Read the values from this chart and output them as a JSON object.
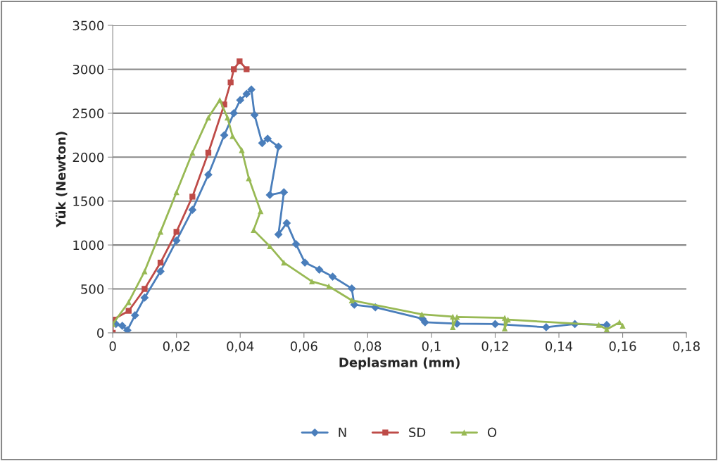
{
  "chart_data": {
    "type": "line",
    "xlabel": "Deplasman (mm)",
    "ylabel": "Yük (Newton)",
    "xlim": [
      0,
      0.18
    ],
    "ylim": [
      0,
      3500
    ],
    "xticks": [
      0,
      {
        "value": 0.02,
        "label": "0,02"
      },
      {
        "value": 0.04,
        "label": "0,04"
      },
      {
        "value": 0.06,
        "label": "0,06"
      },
      {
        "value": 0.08,
        "label": "0,08"
      },
      {
        "value": 0.1,
        "label": "0,1"
      },
      {
        "value": 0.12,
        "label": "0,12"
      },
      {
        "value": 0.14,
        "label": "0,14"
      },
      {
        "value": 0.16,
        "label": "0,16"
      },
      {
        "value": 0.18,
        "label": "0,18"
      }
    ],
    "yticks": [
      0,
      500,
      1000,
      1500,
      2000,
      2500,
      3000,
      3500
    ],
    "grid": "y",
    "legend": "bottom",
    "line_style": "solid",
    "series": [
      {
        "name": "N",
        "color": "#4a7ebb",
        "marker": "diamond",
        "x": [
          0.001,
          0.003,
          0.0046,
          0.007,
          0.01,
          0.015,
          0.02,
          0.025,
          0.03,
          0.035,
          0.038,
          0.04,
          0.042,
          0.0435,
          0.0445,
          0.0469,
          0.0486,
          0.052,
          0.0493,
          0.0537,
          0.052,
          0.0546,
          0.0575,
          0.0603,
          0.0648,
          0.069,
          0.075,
          0.0758,
          0.0824,
          0.0972,
          0.098,
          0.108,
          0.12,
          0.136,
          0.145,
          0.155
        ],
        "values": [
          100,
          80,
          30,
          200,
          400,
          700,
          1050,
          1400,
          1800,
          2250,
          2500,
          2650,
          2720,
          2770,
          2480,
          2160,
          2210,
          2120,
          1570,
          1600,
          1120,
          1250,
          1010,
          800,
          720,
          640,
          505,
          320,
          290,
          160,
          120,
          104,
          100,
          64,
          100,
          90
        ]
      },
      {
        "name": "SD",
        "color": "#be4b48",
        "marker": "square",
        "x": [
          0,
          0,
          0.005,
          0.01,
          0.015,
          0.02,
          0.025,
          0.03,
          0.035,
          0.037,
          0.038,
          0.0398,
          0.042
        ],
        "values": [
          0,
          150,
          250,
          500,
          800,
          1150,
          1550,
          2050,
          2600,
          2850,
          3000,
          3090,
          3000
        ]
      },
      {
        "name": "O",
        "color": "#98b954",
        "marker": "triangle",
        "x": [
          0,
          0.005,
          0.01,
          0.015,
          0.02,
          0.025,
          0.03,
          0.0336,
          0.036,
          0.0376,
          0.0405,
          0.0427,
          0.0464,
          0.0442,
          0.0493,
          0.0537,
          0.0625,
          0.0678,
          0.075,
          0.097,
          0.1067,
          0.1067,
          0.108,
          0.123,
          0.123,
          0.124,
          0.1525,
          0.155,
          0.159,
          0.16
        ],
        "values": [
          100,
          350,
          700,
          1150,
          1600,
          2050,
          2450,
          2650,
          2450,
          2240,
          2080,
          1760,
          1385,
          1170,
          985,
          800,
          585,
          530,
          370,
          210,
          185,
          65,
          180,
          170,
          50,
          150,
          90,
          40,
          120,
          80
        ]
      }
    ]
  }
}
